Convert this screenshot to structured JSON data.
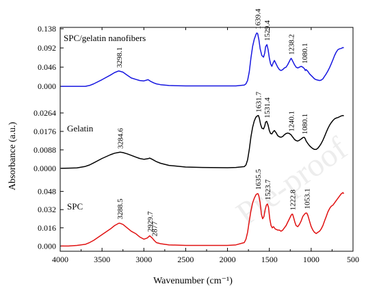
{
  "chart_data": {
    "type": "line",
    "xlabel": "Wavenumber (cm⁻¹)",
    "ylabel": "Absorbance (a.u.)",
    "xlim": [
      4000,
      500
    ],
    "x_ticks": [
      "4000",
      "3500",
      "3000",
      "2500",
      "2000",
      "1500",
      "1000",
      "500"
    ],
    "grid": false,
    "watermark": "Pre-proof",
    "panels": [
      {
        "name": "SPC/gelatin nanofibers",
        "color": "#1515e0",
        "ylim": [
          -0.008,
          0.138
        ],
        "y_ticks": [
          "0.000",
          "0.046",
          "0.092",
          "0.138"
        ],
        "x": [
          3990,
          3900,
          3800,
          3700,
          3650,
          3600,
          3500,
          3400,
          3350,
          3300,
          3250,
          3200,
          3150,
          3100,
          3050,
          3000,
          2950,
          2920,
          2880,
          2850,
          2800,
          2700,
          2500,
          2300,
          2000,
          1900,
          1800,
          1780,
          1760,
          1740,
          1720,
          1700,
          1680,
          1660,
          1650,
          1639,
          1625,
          1610,
          1590,
          1570,
          1555,
          1545,
          1529,
          1515,
          1500,
          1485,
          1470,
          1455,
          1440,
          1420,
          1400,
          1380,
          1360,
          1340,
          1320,
          1300,
          1280,
          1260,
          1245,
          1238,
          1230,
          1215,
          1200,
          1180,
          1160,
          1140,
          1120,
          1100,
          1080,
          1070,
          1060,
          1040,
          1020,
          1000,
          980,
          960,
          940,
          920,
          900,
          880,
          860,
          840,
          820,
          800,
          780,
          760,
          740,
          720,
          700,
          680,
          660,
          640,
          620,
          610
        ],
        "y": [
          0.0,
          0.0,
          0.0,
          0.0,
          0.002,
          0.006,
          0.016,
          0.027,
          0.033,
          0.037,
          0.034,
          0.027,
          0.02,
          0.017,
          0.014,
          0.013,
          0.016,
          0.012,
          0.008,
          0.006,
          0.004,
          0.002,
          0.001,
          0.001,
          0.001,
          0.001,
          0.003,
          0.006,
          0.014,
          0.035,
          0.068,
          0.096,
          0.113,
          0.124,
          0.128,
          0.126,
          0.112,
          0.09,
          0.074,
          0.07,
          0.08,
          0.095,
          0.1,
          0.088,
          0.068,
          0.054,
          0.048,
          0.056,
          0.062,
          0.054,
          0.046,
          0.04,
          0.038,
          0.04,
          0.044,
          0.046,
          0.052,
          0.06,
          0.066,
          0.067,
          0.064,
          0.058,
          0.052,
          0.046,
          0.044,
          0.046,
          0.048,
          0.046,
          0.042,
          0.038,
          0.04,
          0.036,
          0.03,
          0.026,
          0.022,
          0.018,
          0.016,
          0.015,
          0.014,
          0.015,
          0.018,
          0.024,
          0.03,
          0.037,
          0.045,
          0.054,
          0.064,
          0.074,
          0.082,
          0.088,
          0.09,
          0.091,
          0.093,
          0.092
        ]
      },
      {
        "name": "Gelatin",
        "color": "#000000",
        "ylim": [
          -0.002,
          0.0264
        ],
        "y_ticks": [
          "0.0000",
          "0.0088",
          "0.0176",
          "0.0264"
        ],
        "x": [
          3990,
          3900,
          3800,
          3700,
          3650,
          3600,
          3500,
          3400,
          3350,
          3300,
          3284,
          3250,
          3200,
          3150,
          3100,
          3050,
          3000,
          2950,
          2930,
          2900,
          2850,
          2800,
          2700,
          2500,
          2300,
          2000,
          1900,
          1800,
          1780,
          1760,
          1740,
          1720,
          1700,
          1680,
          1660,
          1645,
          1631,
          1620,
          1605,
          1590,
          1570,
          1555,
          1545,
          1531,
          1515,
          1500,
          1485,
          1470,
          1455,
          1440,
          1420,
          1400,
          1380,
          1360,
          1340,
          1320,
          1300,
          1280,
          1260,
          1250,
          1240,
          1230,
          1215,
          1200,
          1180,
          1160,
          1140,
          1120,
          1100,
          1090,
          1080,
          1070,
          1060,
          1040,
          1020,
          1000,
          980,
          960,
          940,
          920,
          900,
          880,
          860,
          840,
          820,
          800,
          780,
          760,
          740,
          720,
          700,
          680,
          660,
          640,
          620,
          610
        ],
        "y": [
          0.0,
          0.0001,
          0.0002,
          0.0009,
          0.0016,
          0.0026,
          0.0047,
          0.0065,
          0.0072,
          0.0076,
          0.0077,
          0.0075,
          0.0069,
          0.0062,
          0.0054,
          0.0047,
          0.0043,
          0.0046,
          0.0049,
          0.0043,
          0.0032,
          0.0024,
          0.0014,
          0.0006,
          0.0004,
          0.0003,
          0.0004,
          0.0008,
          0.0016,
          0.004,
          0.009,
          0.015,
          0.0196,
          0.0226,
          0.0244,
          0.025,
          0.0252,
          0.024,
          0.021,
          0.0192,
          0.0188,
          0.0202,
          0.022,
          0.0224,
          0.0206,
          0.018,
          0.0166,
          0.0164,
          0.0174,
          0.018,
          0.017,
          0.0156,
          0.015,
          0.0148,
          0.0152,
          0.016,
          0.0166,
          0.0168,
          0.0166,
          0.0162,
          0.016,
          0.0154,
          0.0146,
          0.0138,
          0.0132,
          0.013,
          0.0134,
          0.014,
          0.0146,
          0.0148,
          0.0147,
          0.014,
          0.013,
          0.0118,
          0.0108,
          0.01,
          0.0094,
          0.009,
          0.009,
          0.0096,
          0.0106,
          0.0118,
          0.0134,
          0.0152,
          0.0172,
          0.019,
          0.0206,
          0.0218,
          0.0228,
          0.0236,
          0.024,
          0.0242,
          0.0246,
          0.025,
          0.0252,
          0.025
        ]
      },
      {
        "name": "SPC",
        "color": "#e01010",
        "ylim": [
          -0.004,
          0.052
        ],
        "y_ticks": [
          "0.000",
          "0.016",
          "0.032",
          "0.048"
        ],
        "x": [
          3990,
          3900,
          3800,
          3700,
          3650,
          3600,
          3500,
          3400,
          3350,
          3300,
          3288,
          3250,
          3200,
          3150,
          3100,
          3050,
          3000,
          2960,
          2930,
          2900,
          2877,
          2850,
          2800,
          2700,
          2500,
          2300,
          2000,
          1900,
          1800,
          1780,
          1760,
          1740,
          1720,
          1700,
          1680,
          1660,
          1645,
          1635,
          1625,
          1610,
          1595,
          1580,
          1565,
          1550,
          1535,
          1523,
          1510,
          1495,
          1480,
          1465,
          1450,
          1430,
          1400,
          1380,
          1360,
          1340,
          1320,
          1300,
          1280,
          1260,
          1240,
          1230,
          1222,
          1210,
          1195,
          1180,
          1160,
          1140,
          1120,
          1100,
          1080,
          1065,
          1053,
          1040,
          1020,
          1000,
          980,
          960,
          940,
          920,
          900,
          880,
          860,
          840,
          820,
          800,
          780,
          760,
          740,
          720,
          700,
          680,
          660,
          640,
          620,
          610
        ],
        "y": [
          0.0,
          0.0,
          0.0005,
          0.0015,
          0.003,
          0.005,
          0.01,
          0.015,
          0.018,
          0.02,
          0.02,
          0.019,
          0.016,
          0.013,
          0.011,
          0.008,
          0.006,
          0.007,
          0.009,
          0.007,
          0.005,
          0.003,
          0.002,
          0.001,
          0.0005,
          0.0005,
          0.0005,
          0.001,
          0.003,
          0.006,
          0.012,
          0.022,
          0.031,
          0.038,
          0.042,
          0.045,
          0.046,
          0.046,
          0.044,
          0.038,
          0.028,
          0.024,
          0.026,
          0.032,
          0.036,
          0.037,
          0.034,
          0.024,
          0.018,
          0.016,
          0.017,
          0.015,
          0.014,
          0.014,
          0.013,
          0.014,
          0.016,
          0.018,
          0.021,
          0.024,
          0.027,
          0.028,
          0.028,
          0.025,
          0.021,
          0.018,
          0.017,
          0.019,
          0.022,
          0.026,
          0.028,
          0.029,
          0.029,
          0.027,
          0.022,
          0.017,
          0.014,
          0.012,
          0.011,
          0.012,
          0.013,
          0.015,
          0.018,
          0.022,
          0.026,
          0.03,
          0.033,
          0.035,
          0.036,
          0.038,
          0.04,
          0.042,
          0.044,
          0.046,
          0.047,
          0.046
        ]
      }
    ],
    "annotations": [
      {
        "panel": 0,
        "text": "3298.1",
        "x": 3298.1,
        "y": 0.038
      },
      {
        "panel": 0,
        "text": "1639.4",
        "x": 1639.4,
        "y": 0.13
      },
      {
        "panel": 0,
        "text": "1529.4",
        "x": 1529.4,
        "y": 0.102
      },
      {
        "panel": 0,
        "text": "1238.2",
        "x": 1238.2,
        "y": 0.069
      },
      {
        "panel": 0,
        "text": "1080.1",
        "x": 1080.1,
        "y": 0.048
      },
      {
        "panel": 1,
        "text": "3284.6",
        "x": 3284.6,
        "y": 0.008
      },
      {
        "panel": 1,
        "text": "1631.7",
        "x": 1631.7,
        "y": 0.0254
      },
      {
        "panel": 1,
        "text": "1531.4",
        "x": 1531.4,
        "y": 0.0226
      },
      {
        "panel": 1,
        "text": "1240.1",
        "x": 1240.1,
        "y": 0.0162
      },
      {
        "panel": 1,
        "text": "1080.1",
        "x": 1080.1,
        "y": 0.0149
      },
      {
        "panel": 2,
        "text": "3288.5",
        "x": 3288.5,
        "y": 0.021
      },
      {
        "panel": 2,
        "text": "2929.7",
        "x": 2929.7,
        "y": 0.01
      },
      {
        "panel": 2,
        "text": "2877",
        "x": 2877,
        "y": 0.006
      },
      {
        "panel": 2,
        "text": "1635.5",
        "x": 1635.5,
        "y": 0.047
      },
      {
        "panel": 2,
        "text": "1523.7",
        "x": 1523.7,
        "y": 0.038
      },
      {
        "panel": 2,
        "text": "1222.8",
        "x": 1222.8,
        "y": 0.029
      },
      {
        "panel": 2,
        "text": "1053.1",
        "x": 1053.1,
        "y": 0.03
      }
    ]
  }
}
